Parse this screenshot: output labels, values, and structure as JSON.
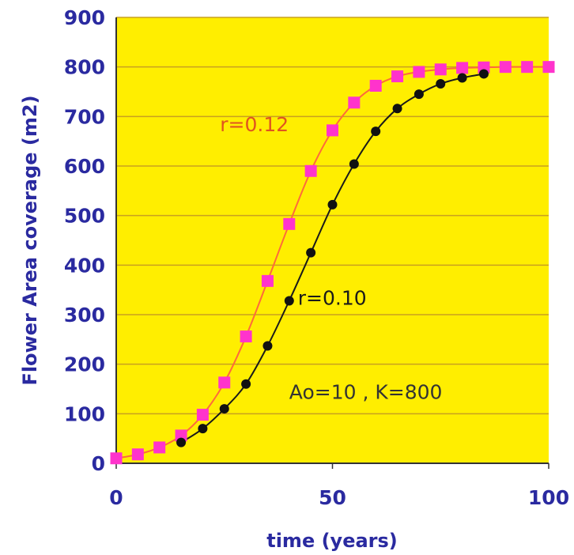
{
  "chart_data": {
    "type": "line",
    "title": "",
    "xlabel": "time (years)",
    "ylabel": "Flower Area coverage (m2)",
    "xlim": [
      0,
      100
    ],
    "ylim": [
      0,
      900
    ],
    "x_ticks": [
      0,
      50,
      100
    ],
    "y_ticks": [
      0,
      100,
      200,
      300,
      400,
      500,
      600,
      700,
      800,
      900
    ],
    "grid": "horizontal",
    "background": "#ffee00",
    "series": [
      {
        "name": "r=0.12",
        "line_color": "#ff6a3a",
        "marker_color": "#ff33cc",
        "marker": "square",
        "x": [
          0,
          5,
          10,
          15,
          20,
          25,
          30,
          35,
          40,
          45,
          50,
          55,
          60,
          65,
          70,
          75,
          80,
          85,
          90,
          95,
          100
        ],
        "values": [
          10,
          18,
          32,
          56,
          98,
          163,
          256,
          368,
          483,
          590,
          672,
          728,
          762,
          781,
          790,
          795,
          798,
          799,
          800,
          800,
          800
        ]
      },
      {
        "name": "r=0.10",
        "line_color": "#1a1a1a",
        "marker_color": "#111111",
        "marker": "circle",
        "x": [
          15,
          20,
          25,
          30,
          35,
          40,
          45,
          50,
          55,
          60,
          65,
          70,
          75,
          80,
          85
        ],
        "values": [
          42,
          70,
          110,
          160,
          237,
          328,
          425,
          522,
          604,
          670,
          716,
          745,
          766,
          778,
          786
        ]
      }
    ],
    "annotations": [
      {
        "text": "r=0.12",
        "color": "#e0541f",
        "x": 24,
        "y": 670
      },
      {
        "text": "r=0.10",
        "color": "#1a1a1a",
        "x": 42,
        "y": 320
      },
      {
        "text": "Ao=10   , K=800",
        "color": "#333333",
        "x": 40,
        "y": 130
      }
    ]
  }
}
